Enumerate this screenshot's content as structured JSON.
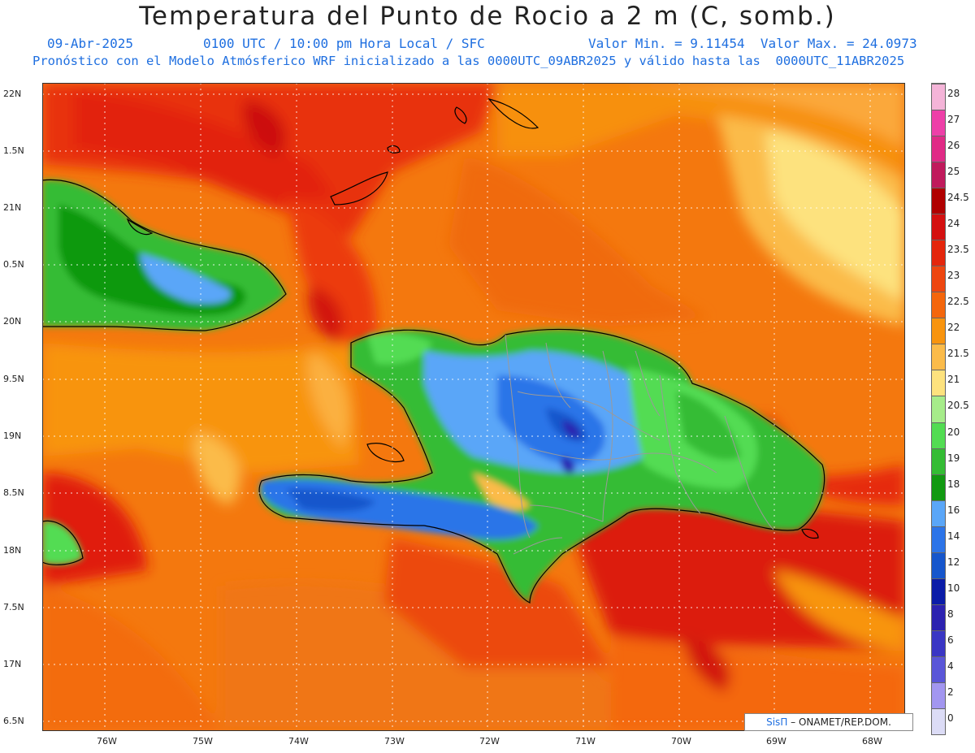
{
  "header": {
    "title": "Temperatura del Punto de Rocio a 2 m (C, somb.)",
    "date": "09-Abr-2025",
    "time": "0100 UTC / 10:00 pm Hora Local / SFC",
    "range": "Valor Min. = 9.11454  Valor Max. = 24.0973",
    "forecast_info": "Pronóstico con el Modelo Atmósferico WRF inicializado a las 0000UTC_09ABR2025 y válido hasta las  0000UTC_11ABR2025"
  },
  "axes": {
    "lat_labels": [
      "22N",
      "1.5N",
      "21N",
      "0.5N",
      "20N",
      "9.5N",
      "19N",
      "8.5N",
      "18N",
      "7.5N",
      "17N",
      "6.5N"
    ],
    "lon_labels": [
      "76W",
      "75W",
      "74W",
      "73W",
      "72W",
      "71W",
      "70W",
      "69W",
      "68W"
    ]
  },
  "colorbar": {
    "labels": [
      "28",
      "27",
      "26",
      "25",
      "24.5",
      "24",
      "23.5",
      "23",
      "22.5",
      "22",
      "21.5",
      "21",
      "20.5",
      "20",
      "19",
      "18",
      "16",
      "14",
      "12",
      "10",
      "8",
      "6",
      "4",
      "2",
      "0"
    ],
    "colors": [
      "#f4b4d8",
      "#ee3fa8",
      "#e02a86",
      "#c01a5c",
      "#b00000",
      "#d41010",
      "#e4260c",
      "#ee4610",
      "#f4660c",
      "#f8940e",
      "#fbbb4a",
      "#fde27e",
      "#a6ec8a",
      "#52dc52",
      "#34bc34",
      "#119911",
      "#5aa6f8",
      "#2c74e8",
      "#1656cc",
      "#0b1ca8",
      "#2c22b0",
      "#3a36c4",
      "#5a56d8",
      "#a296f0",
      "#dcdcf6"
    ]
  },
  "credit": {
    "brand": "SisΠ",
    "text": "– ONAMET/REP.DOM."
  }
}
